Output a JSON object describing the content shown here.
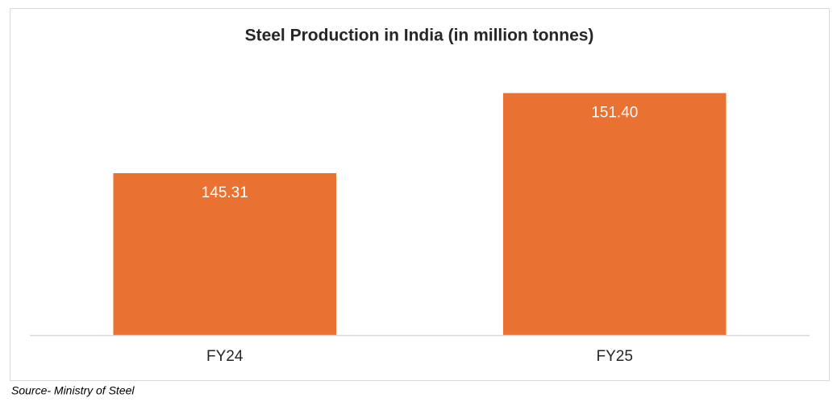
{
  "chart_data": {
    "type": "bar",
    "title": "Steel Production in India (in million tonnes)",
    "categories": [
      "FY24",
      "FY25"
    ],
    "values": [
      145.31,
      151.4
    ],
    "value_labels": [
      "145.31",
      "151.40"
    ],
    "color": "#e97132",
    "ylim": [
      133,
      153
    ],
    "source": "Source- Ministry of Steel"
  }
}
